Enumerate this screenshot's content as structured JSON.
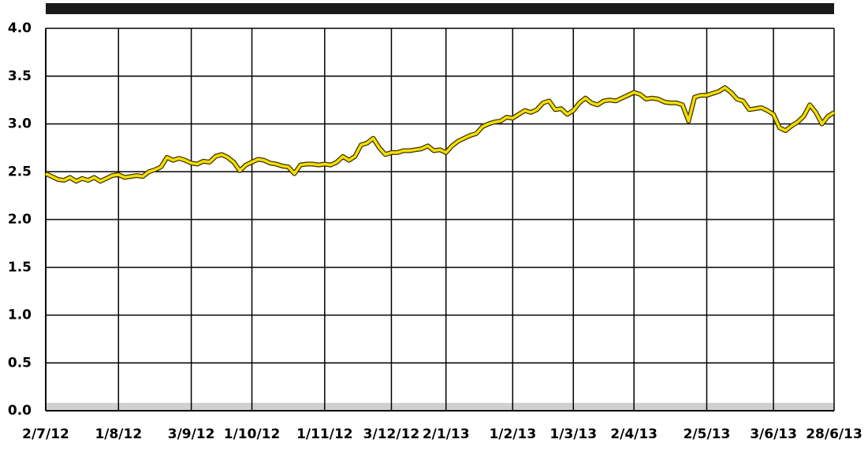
{
  "chart_data": {
    "type": "line",
    "categories": [
      "2/7/12",
      null,
      null,
      null,
      null,
      null,
      null,
      null,
      null,
      null,
      null,
      null,
      "1/8/12",
      null,
      null,
      null,
      null,
      null,
      null,
      null,
      null,
      null,
      null,
      null,
      "3/9/12",
      null,
      null,
      null,
      null,
      null,
      null,
      null,
      null,
      null,
      "1/10/12",
      null,
      null,
      null,
      null,
      null,
      null,
      null,
      null,
      null,
      null,
      null,
      "1/11/12",
      null,
      null,
      null,
      null,
      null,
      null,
      null,
      null,
      null,
      null,
      "3/12/12",
      null,
      null,
      null,
      null,
      null,
      null,
      null,
      null,
      "2/1/13",
      null,
      null,
      null,
      null,
      null,
      null,
      null,
      null,
      null,
      null,
      "1/2/13",
      null,
      null,
      null,
      null,
      null,
      null,
      null,
      null,
      null,
      "1/3/13",
      null,
      null,
      null,
      null,
      null,
      null,
      null,
      null,
      null,
      "2/4/13",
      null,
      null,
      null,
      null,
      null,
      null,
      null,
      null,
      null,
      null,
      null,
      "2/5/13",
      null,
      null,
      null,
      null,
      null,
      null,
      null,
      null,
      null,
      null,
      "3/6/13",
      null,
      null,
      null,
      null,
      null,
      null,
      null,
      null,
      null,
      "28/6/13"
    ],
    "series": [
      {
        "color": "#f5de00",
        "values": [
          2.48,
          2.45,
          2.42,
          2.41,
          2.44,
          2.4,
          2.43,
          2.41,
          2.44,
          2.4,
          2.43,
          2.46,
          2.47,
          2.44,
          2.45,
          2.46,
          2.45,
          2.5,
          2.52,
          2.55,
          2.65,
          2.62,
          2.64,
          2.62,
          2.59,
          2.58,
          2.61,
          2.6,
          2.66,
          2.68,
          2.65,
          2.6,
          2.51,
          2.57,
          2.6,
          2.63,
          2.62,
          2.59,
          2.58,
          2.56,
          2.55,
          2.48,
          2.57,
          2.58,
          2.58,
          2.57,
          2.58,
          2.57,
          2.6,
          2.66,
          2.62,
          2.66,
          2.78,
          2.8,
          2.85,
          2.75,
          2.68,
          2.7,
          2.7,
          2.72,
          2.72,
          2.73,
          2.74,
          2.77,
          2.72,
          2.73,
          2.7,
          2.77,
          2.82,
          2.85,
          2.88,
          2.9,
          2.97,
          3.0,
          3.02,
          3.03,
          3.07,
          3.06,
          3.1,
          3.14,
          3.12,
          3.15,
          3.22,
          3.24,
          3.15,
          3.16,
          3.1,
          3.14,
          3.22,
          3.27,
          3.22,
          3.2,
          3.24,
          3.25,
          3.24,
          3.27,
          3.3,
          3.33,
          3.31,
          3.26,
          3.27,
          3.26,
          3.23,
          3.22,
          3.22,
          3.2,
          3.03,
          3.28,
          3.3,
          3.3,
          3.32,
          3.34,
          3.38,
          3.33,
          3.26,
          3.24,
          3.15,
          3.16,
          3.17,
          3.14,
          3.1,
          2.96,
          2.93,
          2.98,
          3.02,
          3.08,
          3.2,
          3.12,
          3.0,
          3.08,
          3.12
        ]
      }
    ],
    "ylim": [
      0,
      4
    ],
    "yticks": [
      {
        "value": 0,
        "label": "0.0"
      },
      0.5,
      {
        "value": 1,
        "label": "1.0"
      },
      1.5,
      {
        "value": 2,
        "label": "2.0"
      },
      2.5,
      {
        "value": 3,
        "label": "3.0"
      },
      3.5,
      {
        "value": 4,
        "label": "4.0"
      }
    ],
    "grid": true
  }
}
